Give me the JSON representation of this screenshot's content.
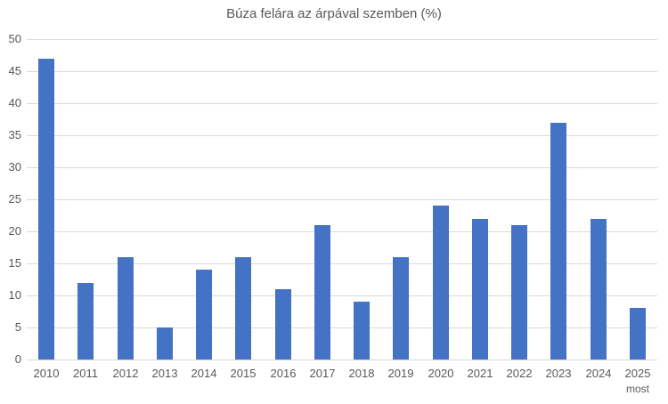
{
  "chart_data": {
    "type": "bar",
    "title": "Búza felára az árpával szemben (%)",
    "categories": [
      "2010",
      "2011",
      "2012",
      "2013",
      "2014",
      "2015",
      "2016",
      "2017",
      "2018",
      "2019",
      "2020",
      "2021",
      "2022",
      "2023",
      "2024",
      "2025"
    ],
    "values": [
      47,
      12,
      16,
      5,
      14,
      16,
      11,
      21,
      9,
      16,
      24,
      22,
      21,
      37,
      22,
      8
    ],
    "x_sublabels": [
      "",
      "",
      "",
      "",
      "",
      "",
      "",
      "",
      "",
      "",
      "",
      "",
      "",
      "",
      "",
      "most"
    ],
    "xlabel": "",
    "ylabel": "",
    "ylim": [
      0,
      50
    ],
    "ytick_step": 5,
    "grid": true,
    "legend_position": "none",
    "bar_color": "#4472C4",
    "gridline_color": "#D9D9D9",
    "axis_text_color": "#595959",
    "title_color": "#595959",
    "background_color": "#FFFFFF"
  }
}
